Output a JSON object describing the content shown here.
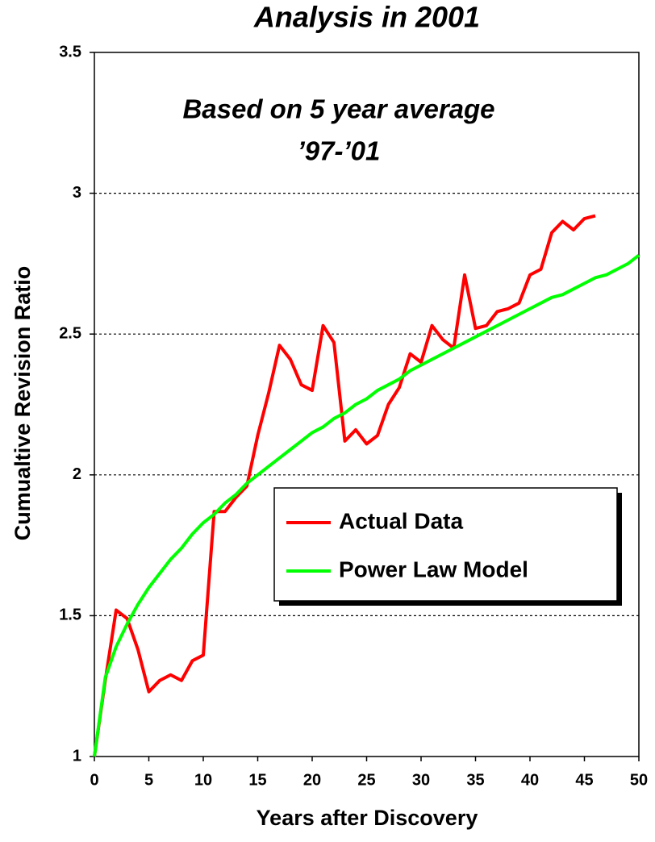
{
  "chart_data": {
    "type": "line",
    "title": "Analysis in 2001",
    "annotations": [
      "Based on 5 year average",
      "’97-’01"
    ],
    "x_label": "Years after Discovery",
    "y_label": "Cumualtive Revision Ratio",
    "x": [
      0,
      1,
      2,
      3,
      4,
      5,
      6,
      7,
      8,
      9,
      10,
      11,
      12,
      13,
      14,
      15,
      16,
      17,
      18,
      19,
      20,
      21,
      22,
      23,
      24,
      25,
      26,
      27,
      28,
      29,
      30,
      31,
      32,
      33,
      34,
      35,
      36,
      37,
      38,
      39,
      40,
      41,
      42,
      43,
      44,
      45,
      46,
      47,
      48,
      49,
      50
    ],
    "series": [
      {
        "name": "Actual Data",
        "color": "#ff0000",
        "values": [
          1.0,
          1.27,
          1.52,
          1.49,
          1.38,
          1.23,
          1.27,
          1.29,
          1.27,
          1.34,
          1.36,
          1.87,
          1.87,
          1.92,
          1.96,
          2.14,
          2.29,
          2.46,
          2.41,
          2.32,
          2.3,
          2.53,
          2.47,
          2.12,
          2.16,
          2.11,
          2.14,
          2.25,
          2.31,
          2.43,
          2.4,
          2.53,
          2.48,
          2.45,
          2.71,
          2.52,
          2.53,
          2.58,
          2.59,
          2.61,
          2.71,
          2.73,
          2.86,
          2.9,
          2.87,
          2.91,
          2.92,
          null,
          null,
          null,
          null
        ]
      },
      {
        "name": "Power Law Model",
        "color": "#00ff00",
        "values": [
          1.0,
          1.28,
          1.39,
          1.47,
          1.54,
          1.6,
          1.65,
          1.7,
          1.74,
          1.79,
          1.83,
          1.86,
          1.9,
          1.93,
          1.97,
          2.0,
          2.03,
          2.06,
          2.09,
          2.12,
          2.15,
          2.17,
          2.2,
          2.22,
          2.25,
          2.27,
          2.3,
          2.32,
          2.34,
          2.37,
          2.39,
          2.41,
          2.43,
          2.45,
          2.47,
          2.49,
          2.51,
          2.53,
          2.55,
          2.57,
          2.59,
          2.61,
          2.63,
          2.64,
          2.66,
          2.68,
          2.7,
          2.71,
          2.73,
          2.75,
          2.78
        ]
      }
    ],
    "xlim": [
      0,
      50
    ],
    "xticks": [
      0,
      5,
      10,
      15,
      20,
      25,
      30,
      35,
      40,
      45,
      50
    ],
    "ylim": [
      1,
      3.5
    ],
    "yticks": [
      1,
      1.5,
      2,
      2.5,
      3,
      3.5
    ],
    "grid": true,
    "legend": "right"
  }
}
